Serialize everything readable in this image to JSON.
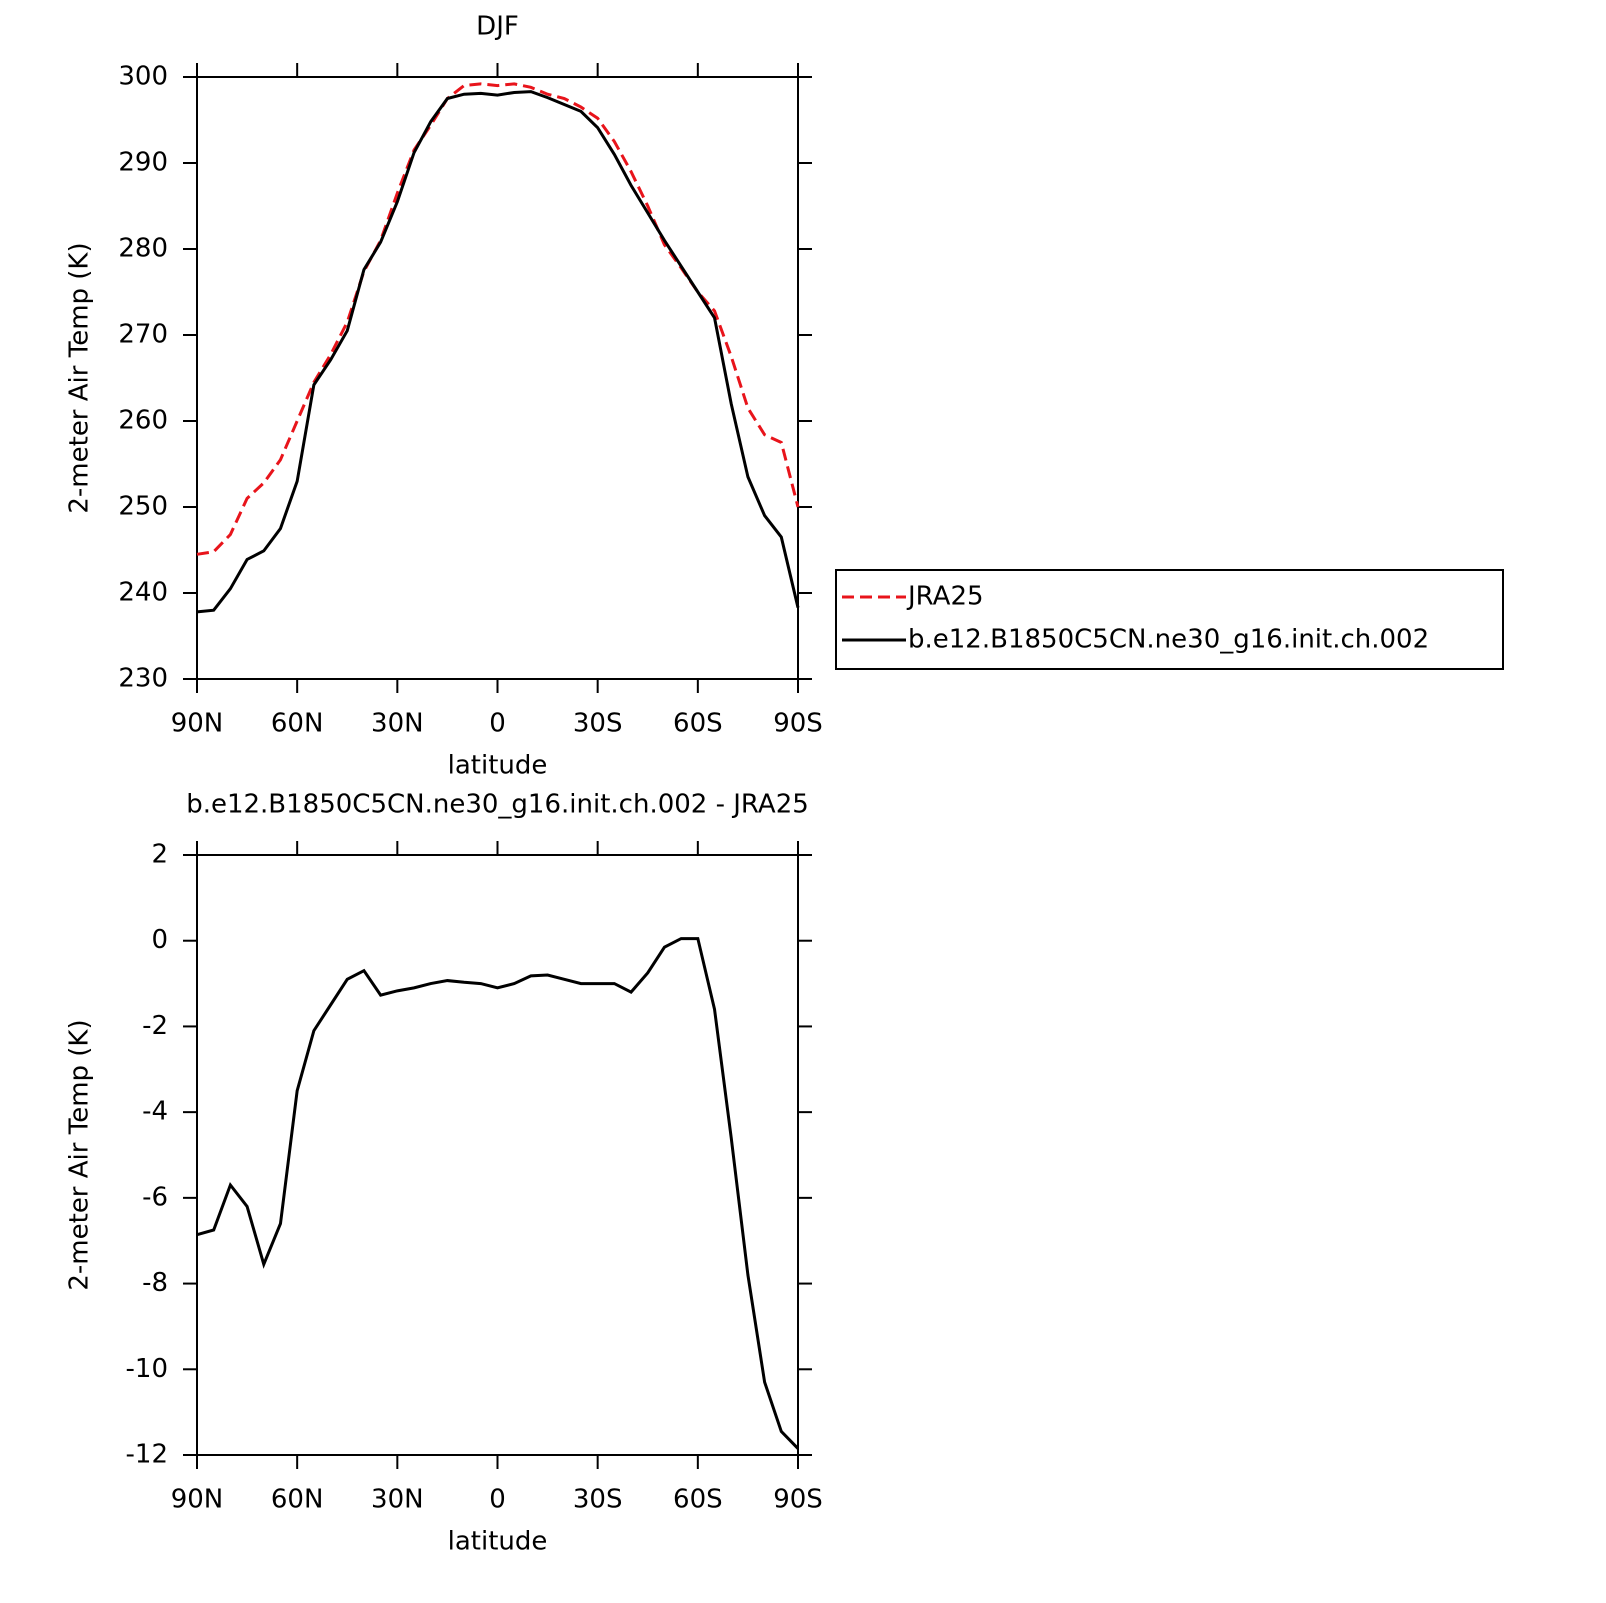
{
  "chart_data": [
    {
      "type": "line",
      "title": "DJF",
      "xlabel": "latitude",
      "ylabel": "2-meter Air Temp (K)",
      "x": [
        90,
        85,
        80,
        75,
        70,
        65,
        60,
        55,
        50,
        45,
        40,
        35,
        30,
        25,
        20,
        15,
        10,
        5,
        0,
        -5,
        -10,
        -15,
        -20,
        -25,
        -30,
        -35,
        -40,
        -45,
        -50,
        -55,
        -60,
        -65,
        -70,
        -75,
        -80,
        -85,
        -90
      ],
      "xlim": [
        90,
        -90
      ],
      "xticks": [
        {
          "value": 90,
          "label": "90N"
        },
        {
          "value": 60,
          "label": "60N"
        },
        {
          "value": 30,
          "label": "30N"
        },
        0,
        {
          "value": -30,
          "label": "30S"
        },
        {
          "value": -60,
          "label": "60S"
        },
        {
          "value": -90,
          "label": "90S"
        }
      ],
      "ylim": [
        230,
        300
      ],
      "yticks": [
        230,
        240,
        250,
        260,
        270,
        280,
        290,
        300
      ],
      "legend": "right",
      "series": [
        {
          "name": "JRA25",
          "color": "#e8141b",
          "linestyle": "dashed",
          "values": [
            244.5,
            244.8,
            246.8,
            251,
            252.8,
            255.5,
            260,
            264.5,
            267.7,
            271.5,
            277.4,
            281,
            286.5,
            291.5,
            294.4,
            297.5,
            299,
            299.2,
            299,
            299.2,
            298.8,
            298,
            297.5,
            296.5,
            295.2,
            292.5,
            289,
            285,
            280.5,
            277.8,
            275,
            272.8,
            267.5,
            261.5,
            258.4,
            257.5,
            250
          ]
        },
        {
          "name": "b.e12.B1850C5CN.ne30_g16.init.ch.002",
          "color": "#000000",
          "linestyle": "solid",
          "values": [
            237.8,
            238,
            240.5,
            243.9,
            244.9,
            247.5,
            253,
            264.2,
            267.1,
            270.5,
            277.6,
            280.8,
            285.5,
            291.2,
            294.8,
            297.5,
            298,
            298.1,
            297.9,
            298.2,
            298.3,
            297.6,
            296.8,
            296,
            294.1,
            291,
            287.4,
            284.2,
            281,
            278,
            275,
            272,
            262,
            253.5,
            249,
            246.5,
            238.3
          ]
        }
      ]
    },
    {
      "type": "line",
      "title": "b.e12.B1850C5CN.ne30_g16.init.ch.002 - JRA25",
      "xlabel": "latitude",
      "ylabel": "2-meter Air Temp (K)",
      "x": [
        90,
        85,
        80,
        75,
        70,
        65,
        60,
        55,
        50,
        45,
        40,
        35,
        30,
        25,
        20,
        15,
        10,
        5,
        0,
        -5,
        -10,
        -15,
        -20,
        -25,
        -30,
        -35,
        -40,
        -45,
        -50,
        -55,
        -60,
        -65,
        -70,
        -75,
        -80,
        -85,
        -90
      ],
      "xlim": [
        90,
        -90
      ],
      "xticks": [
        {
          "value": 90,
          "label": "90N"
        },
        {
          "value": 60,
          "label": "60N"
        },
        {
          "value": 30,
          "label": "30N"
        },
        0,
        {
          "value": -30,
          "label": "30S"
        },
        {
          "value": -60,
          "label": "60S"
        },
        {
          "value": -90,
          "label": "90S"
        }
      ],
      "ylim": [
        -12,
        2
      ],
      "yticks": [
        -12,
        -10,
        -8,
        -6,
        -4,
        -2,
        0,
        2
      ],
      "color": "#000000",
      "values": [
        -6.86,
        -6.75,
        -5.7,
        -6.2,
        -7.55,
        -6.6,
        -3.5,
        -2.1,
        -1.5,
        -0.9,
        -0.7,
        -1.27,
        -1.17,
        -1.1,
        -1.0,
        -0.93,
        -0.97,
        -1.0,
        -1.1,
        -1.0,
        -0.82,
        -0.8,
        -0.9,
        -1.0,
        -1.0,
        -1.0,
        -1.2,
        -0.75,
        -0.15,
        0.05,
        0.05,
        -1.6,
        -4.6,
        -7.8,
        -10.3,
        -11.45,
        -11.85
      ]
    }
  ]
}
